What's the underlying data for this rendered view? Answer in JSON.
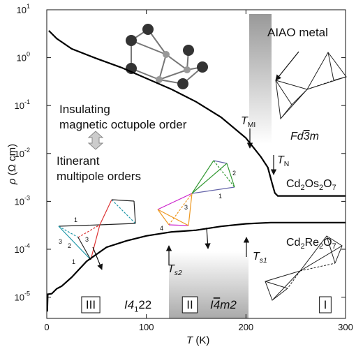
{
  "chart_data": {
    "type": "line",
    "x_label": {
      "segments": [
        {
          "text": "T",
          "italic": true
        },
        {
          "text": " (K)"
        }
      ]
    },
    "y_label": {
      "segments": [
        {
          "text": "ρ",
          "italic": true
        },
        {
          "text": " (Ω cm)"
        }
      ]
    },
    "xlim": [
      0,
      300
    ],
    "xticks": [
      0,
      100,
      200,
      300
    ],
    "ylim": [
      3.6e-06,
      10
    ],
    "y_log": true,
    "yticks": [
      {
        "value": 1e-05,
        "label": "10",
        "exponent": "-5"
      },
      {
        "value": 0.0001,
        "label": "10",
        "exponent": "-4"
      },
      {
        "value": 0.001,
        "label": "10",
        "exponent": "-3"
      },
      {
        "value": 0.01,
        "label": "10",
        "exponent": "-2"
      },
      {
        "value": 0.1,
        "label": "10",
        "exponent": "-1"
      },
      {
        "value": 1,
        "label": "10",
        "exponent": "0"
      },
      {
        "value": 10,
        "label": "10",
        "exponent": "1"
      }
    ],
    "series": [
      {
        "name": "Cd2Os2O7",
        "color": "#000000",
        "x": [
          2,
          10,
          25,
          50,
          75,
          100,
          125,
          150,
          175,
          200,
          215,
          222,
          226,
          229,
          232,
          260,
          300
        ],
        "values": [
          3.66,
          2.5,
          1.53,
          0.96,
          0.62,
          0.37,
          0.22,
          0.12,
          0.057,
          0.021,
          0.0085,
          0.0051,
          0.0025,
          0.0015,
          0.0013,
          0.0013,
          0.0013
        ]
      },
      {
        "name": "Cd2Re2O7",
        "color": "#000000",
        "x": [
          0.5,
          1,
          5,
          10,
          15,
          25,
          40,
          60,
          80,
          100,
          125,
          150,
          175,
          200,
          225,
          260,
          300
        ],
        "values": [
          5e-06,
          1.15e-05,
          1.18e-05,
          1.5e-05,
          1.7e-05,
          2.6e-05,
          5.6e-05,
          0.00011,
          0.00015,
          0.00019,
          0.00023,
          0.00025,
          0.0003,
          0.00034,
          0.00036,
          0.00036,
          0.00036
        ]
      }
    ],
    "annotations": [
      {
        "segments": [
          {
            "text": "AIAO metal"
          }
        ]
      },
      {
        "segments": [
          {
            "text": "Insulating"
          }
        ]
      },
      {
        "segments": [
          {
            "text": "magnetic octupole order"
          }
        ]
      },
      {
        "segments": [
          {
            "text": "Itinerant"
          }
        ]
      },
      {
        "segments": [
          {
            "text": "multipole orders"
          }
        ]
      },
      {
        "segments": [
          {
            "text": "T",
            "italic": true
          },
          {
            "sub": "MI"
          }
        ]
      },
      {
        "segments": [
          {
            "text": "Fd",
            "italic": true
          },
          {
            "bar": "3",
            "italic": true
          },
          {
            "text": "m",
            "italic": true
          }
        ]
      },
      {
        "segments": [
          {
            "text": "T",
            "italic": true
          },
          {
            "sub": "N"
          }
        ]
      },
      {
        "segments": [
          {
            "text": "T",
            "italic": true
          },
          {
            "sub": "s2",
            "italic": true
          }
        ]
      },
      {
        "segments": [
          {
            "text": "T",
            "italic": true
          },
          {
            "sub": "s1",
            "italic": true
          }
        ]
      },
      {
        "segments": [
          {
            "text": "III"
          }
        ],
        "boxed": true
      },
      {
        "segments": [
          {
            "text": "I4",
            "italic": true
          },
          {
            "sub": "1"
          },
          {
            "text": "22"
          }
        ]
      },
      {
        "segments": [
          {
            "text": "II"
          }
        ],
        "boxed": true
      },
      {
        "segments": [
          {
            "text": "I",
            "italic": true
          },
          {
            "bar": "4",
            "italic": true
          },
          {
            "text": "m2",
            "italic": true
          }
        ]
      },
      {
        "segments": [
          {
            "text": "I"
          }
        ],
        "boxed": true
      }
    ],
    "diagram_labels": [
      "1",
      "2",
      "3",
      "3",
      "1",
      "3",
      "4",
      "2",
      "1"
    ]
  }
}
